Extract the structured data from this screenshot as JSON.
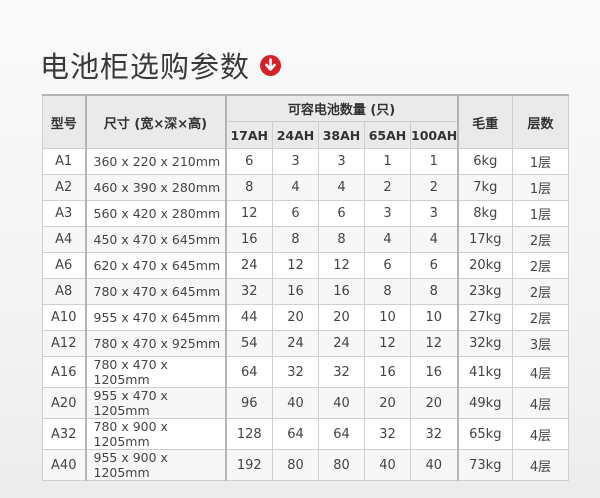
{
  "title": "电池柜选购参数",
  "title_icon": "arrow-down-circle-icon",
  "accent_color": "#d2232a",
  "table": {
    "headers": {
      "model": "型号",
      "size": "尺寸 (宽×深×高)",
      "capacity_group": "可容电池数量 (只)",
      "weight": "毛重",
      "layers": "层数"
    },
    "capacity_columns": [
      "17AH",
      "24AH",
      "38AH",
      "65AH",
      "100AH"
    ],
    "rows": [
      {
        "model": "A1",
        "size": "360 x 220 x 210mm",
        "caps": [
          "6",
          "3",
          "3",
          "1",
          "1"
        ],
        "weight": "6kg",
        "layers": "1层"
      },
      {
        "model": "A2",
        "size": "460 x 390 x 280mm",
        "caps": [
          "8",
          "4",
          "4",
          "2",
          "2"
        ],
        "weight": "7kg",
        "layers": "1层"
      },
      {
        "model": "A3",
        "size": "560 x 420 x 280mm",
        "caps": [
          "12",
          "6",
          "6",
          "3",
          "3"
        ],
        "weight": "8kg",
        "layers": "1层"
      },
      {
        "model": "A4",
        "size": "450 x 470 x 645mm",
        "caps": [
          "16",
          "8",
          "8",
          "4",
          "4"
        ],
        "weight": "17kg",
        "layers": "2层"
      },
      {
        "model": "A6",
        "size": "620 x 470 x 645mm",
        "caps": [
          "24",
          "12",
          "12",
          "6",
          "6"
        ],
        "weight": "20kg",
        "layers": "2层"
      },
      {
        "model": "A8",
        "size": "780 x 470 x 645mm",
        "caps": [
          "32",
          "16",
          "16",
          "8",
          "8"
        ],
        "weight": "23kg",
        "layers": "2层"
      },
      {
        "model": "A10",
        "size": "955 x 470 x 645mm",
        "caps": [
          "44",
          "20",
          "20",
          "10",
          "10"
        ],
        "weight": "27kg",
        "layers": "2层"
      },
      {
        "model": "A12",
        "size": "780 x 470 x 925mm",
        "caps": [
          "54",
          "24",
          "24",
          "12",
          "12"
        ],
        "weight": "32kg",
        "layers": "3层"
      },
      {
        "model": "A16",
        "size": "780 x 470 x 1205mm",
        "caps": [
          "64",
          "32",
          "32",
          "16",
          "16"
        ],
        "weight": "41kg",
        "layers": "4层"
      },
      {
        "model": "A20",
        "size": "955 x 470 x 1205mm",
        "caps": [
          "96",
          "40",
          "40",
          "20",
          "20"
        ],
        "weight": "49kg",
        "layers": "4层"
      },
      {
        "model": "A32",
        "size": "780 x 900 x 1205mm",
        "caps": [
          "128",
          "64",
          "64",
          "32",
          "32"
        ],
        "weight": "65kg",
        "layers": "4层"
      },
      {
        "model": "A40",
        "size": "955 x 900 x 1205mm",
        "caps": [
          "192",
          "80",
          "80",
          "40",
          "40"
        ],
        "weight": "73kg",
        "layers": "4层"
      }
    ]
  }
}
